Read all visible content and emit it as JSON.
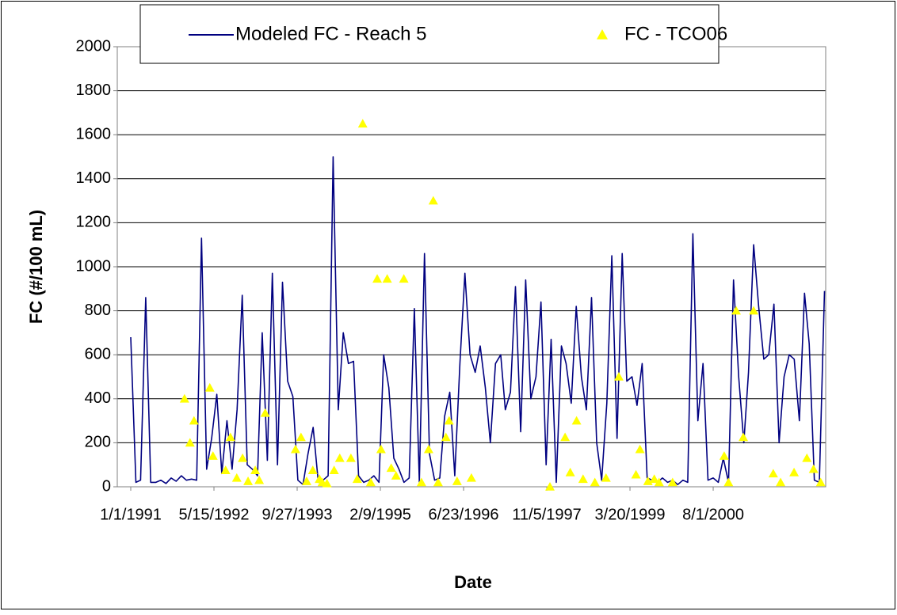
{
  "chart_data": {
    "type": "line_scatter",
    "y_label": "FC (#/100 mL)",
    "x_label": "Date",
    "xlim": [
      "10/12/1990",
      "6/8/2002"
    ],
    "xticks": [
      "1/1/1991",
      "5/15/1992",
      "9/27/1993",
      "2/9/1995",
      "6/23/1996",
      "11/5/1997",
      "3/20/1999",
      "8/1/2000"
    ],
    "ylim": [
      0,
      2000
    ],
    "yticks": [
      0,
      200,
      400,
      600,
      800,
      1000,
      1200,
      1400,
      1600,
      1800,
      2000
    ],
    "grid": true,
    "series": [
      {
        "name": "Modeled FC - Reach 5",
        "color": "#000080",
        "kind": "line",
        "x": [
          "1/1/1991",
          "2/1/1991",
          "3/1/1991",
          "4/1/1991",
          "5/1/1991",
          "6/1/1991",
          "7/1/1991",
          "8/1/1991",
          "9/1/1991",
          "10/1/1991",
          "11/1/1991",
          "12/1/1991",
          "1/1/1992",
          "2/1/1992",
          "3/1/1992",
          "4/1/1992",
          "5/1/1992",
          "6/1/1992",
          "7/1/1992",
          "8/1/1992",
          "9/1/1992",
          "10/1/1992",
          "11/1/1992",
          "12/1/1992",
          "1/1/1993",
          "2/1/1993",
          "3/1/1993",
          "4/1/1993",
          "5/1/1993",
          "6/1/1993",
          "7/1/1993",
          "8/1/1993",
          "9/1/1993",
          "10/1/1993",
          "11/1/1993",
          "12/1/1993",
          "1/1/1994",
          "2/1/1994",
          "3/1/1994",
          "4/1/1994",
          "5/1/1994",
          "6/1/1994",
          "7/1/1994",
          "8/1/1994",
          "9/1/1994",
          "10/1/1994",
          "11/1/1994",
          "12/1/1994",
          "1/1/1995",
          "2/1/1995",
          "3/1/1995",
          "4/1/1995",
          "5/1/1995",
          "6/1/1995",
          "7/1/1995",
          "8/1/1995",
          "9/1/1995",
          "10/1/1995",
          "11/1/1995",
          "12/1/1995",
          "1/1/1996",
          "2/1/1996",
          "3/1/1996",
          "4/1/1996",
          "5/1/1996",
          "6/1/1996",
          "7/1/1996",
          "8/1/1996",
          "9/1/1996",
          "10/1/1996",
          "11/1/1996",
          "12/1/1996",
          "1/1/1997",
          "2/1/1997",
          "3/1/1997",
          "4/1/1997",
          "5/1/1997",
          "6/1/1997",
          "7/1/1997",
          "8/1/1997",
          "9/1/1997",
          "10/1/1997",
          "11/1/1997",
          "12/1/1997",
          "1/1/1998",
          "2/1/1998",
          "3/1/1998",
          "4/1/1998",
          "5/1/1998",
          "6/1/1998",
          "7/1/1998",
          "8/1/1998",
          "9/1/1998",
          "10/1/1998",
          "11/1/1998",
          "12/1/1998",
          "1/1/1999",
          "2/1/1999",
          "3/1/1999",
          "4/1/1999",
          "5/1/1999",
          "6/1/1999",
          "7/1/1999",
          "8/1/1999",
          "9/1/1999",
          "10/1/1999",
          "11/1/1999",
          "12/1/1999",
          "1/1/2000",
          "2/1/2000",
          "3/1/2000",
          "4/1/2000",
          "5/1/2000",
          "6/1/2000",
          "7/1/2000",
          "8/1/2000",
          "9/1/2000",
          "10/1/2000",
          "11/1/2000",
          "12/1/2000",
          "1/1/2001",
          "2/1/2001",
          "3/1/2001",
          "4/1/2001",
          "5/1/2001",
          "6/1/2001",
          "7/1/2001",
          "8/1/2001",
          "9/1/2001",
          "10/1/2001",
          "11/1/2001",
          "12/1/2001",
          "1/1/2002",
          "2/1/2002",
          "3/1/2002",
          "4/1/2002",
          "5/1/2002",
          "6/1/2002"
        ],
        "values": [
          680,
          20,
          30,
          860,
          20,
          20,
          30,
          15,
          40,
          25,
          50,
          30,
          35,
          30,
          1130,
          80,
          220,
          420,
          60,
          300,
          80,
          350,
          870,
          100,
          80,
          50,
          700,
          120,
          970,
          100,
          930,
          480,
          410,
          30,
          10,
          150,
          270,
          20,
          30,
          50,
          1500,
          350,
          700,
          560,
          570,
          50,
          20,
          30,
          50,
          20,
          600,
          450,
          130,
          80,
          20,
          40,
          810,
          20,
          1060,
          150,
          30,
          40,
          320,
          430,
          50,
          560,
          970,
          600,
          520,
          640,
          450,
          200,
          560,
          600,
          350,
          430,
          910,
          250,
          940,
          400,
          500,
          840,
          100,
          670,
          20,
          640,
          560,
          380,
          820,
          500,
          350,
          860,
          200,
          30,
          380,
          1050,
          220,
          1060,
          480,
          500,
          370,
          560,
          40,
          30,
          20,
          40,
          20,
          30,
          10,
          30,
          20,
          1150,
          300,
          560,
          30,
          40,
          20,
          130,
          20,
          940,
          500,
          200,
          520,
          1100,
          820,
          580,
          600,
          830,
          200,
          500,
          600,
          580,
          300,
          880,
          650,
          30,
          20,
          890
        ]
      },
      {
        "name": "FC - TCO06",
        "color": "#ffff00",
        "kind": "scatter",
        "x": [
          "11/20/1991",
          "12/23/1991",
          "1/16/1992",
          "4/20/1992",
          "5/9/1992",
          "7/24/1992",
          "8/22/1992",
          "9/29/1992",
          "11/3/1992",
          "12/6/1992",
          "1/18/1993",
          "2/11/1993",
          "3/19/1993",
          "9/17/1993",
          "10/20/1993",
          "11/23/1993",
          "12/30/1993",
          "2/8/1994",
          "2/25/1994",
          "3/25/1994",
          "5/7/1994",
          "6/10/1994",
          "8/16/1994",
          "9/23/1994",
          "10/26/1994",
          "12/13/1994",
          "1/21/1995",
          "2/13/1995",
          "3/22/1995",
          "4/15/1995",
          "5/14/1995",
          "6/30/1995",
          "10/14/1995",
          "11/26/1995",
          "12/24/1995",
          "1/22/1996",
          "3/9/1996",
          "3/28/1996",
          "5/15/1996",
          "8/9/1996",
          "11/24/1997",
          "2/23/1998",
          "3/26/1998",
          "5/3/1998",
          "6/11/1998",
          "8/21/1998",
          "10/27/1998",
          "1/12/1999",
          "4/25/1999",
          "5/19/1999",
          "7/6/1999",
          "8/13/1999",
          "9/11/1999",
          "12/1/1999",
          "10/6/2000",
          "11/1/2000",
          "12/17/2000",
          "1/29/2001",
          "4/1/2001",
          "7/28/2001",
          "9/10/2001",
          "11/30/2001",
          "2/15/2002",
          "3/27/2002",
          "5/9/2002"
        ],
        "values": [
          400,
          200,
          300,
          450,
          140,
          75,
          225,
          40,
          130,
          25,
          75,
          30,
          335,
          170,
          225,
          25,
          75,
          35,
          20,
          15,
          75,
          130,
          130,
          35,
          1650,
          20,
          945,
          170,
          945,
          85,
          50,
          945,
          20,
          170,
          1300,
          20,
          225,
          300,
          25,
          40,
          0,
          225,
          65,
          300,
          35,
          20,
          40,
          500,
          55,
          170,
          25,
          35,
          20,
          20,
          140,
          20,
          800,
          225,
          800,
          60,
          20,
          65,
          130,
          80,
          20
        ]
      }
    ]
  }
}
